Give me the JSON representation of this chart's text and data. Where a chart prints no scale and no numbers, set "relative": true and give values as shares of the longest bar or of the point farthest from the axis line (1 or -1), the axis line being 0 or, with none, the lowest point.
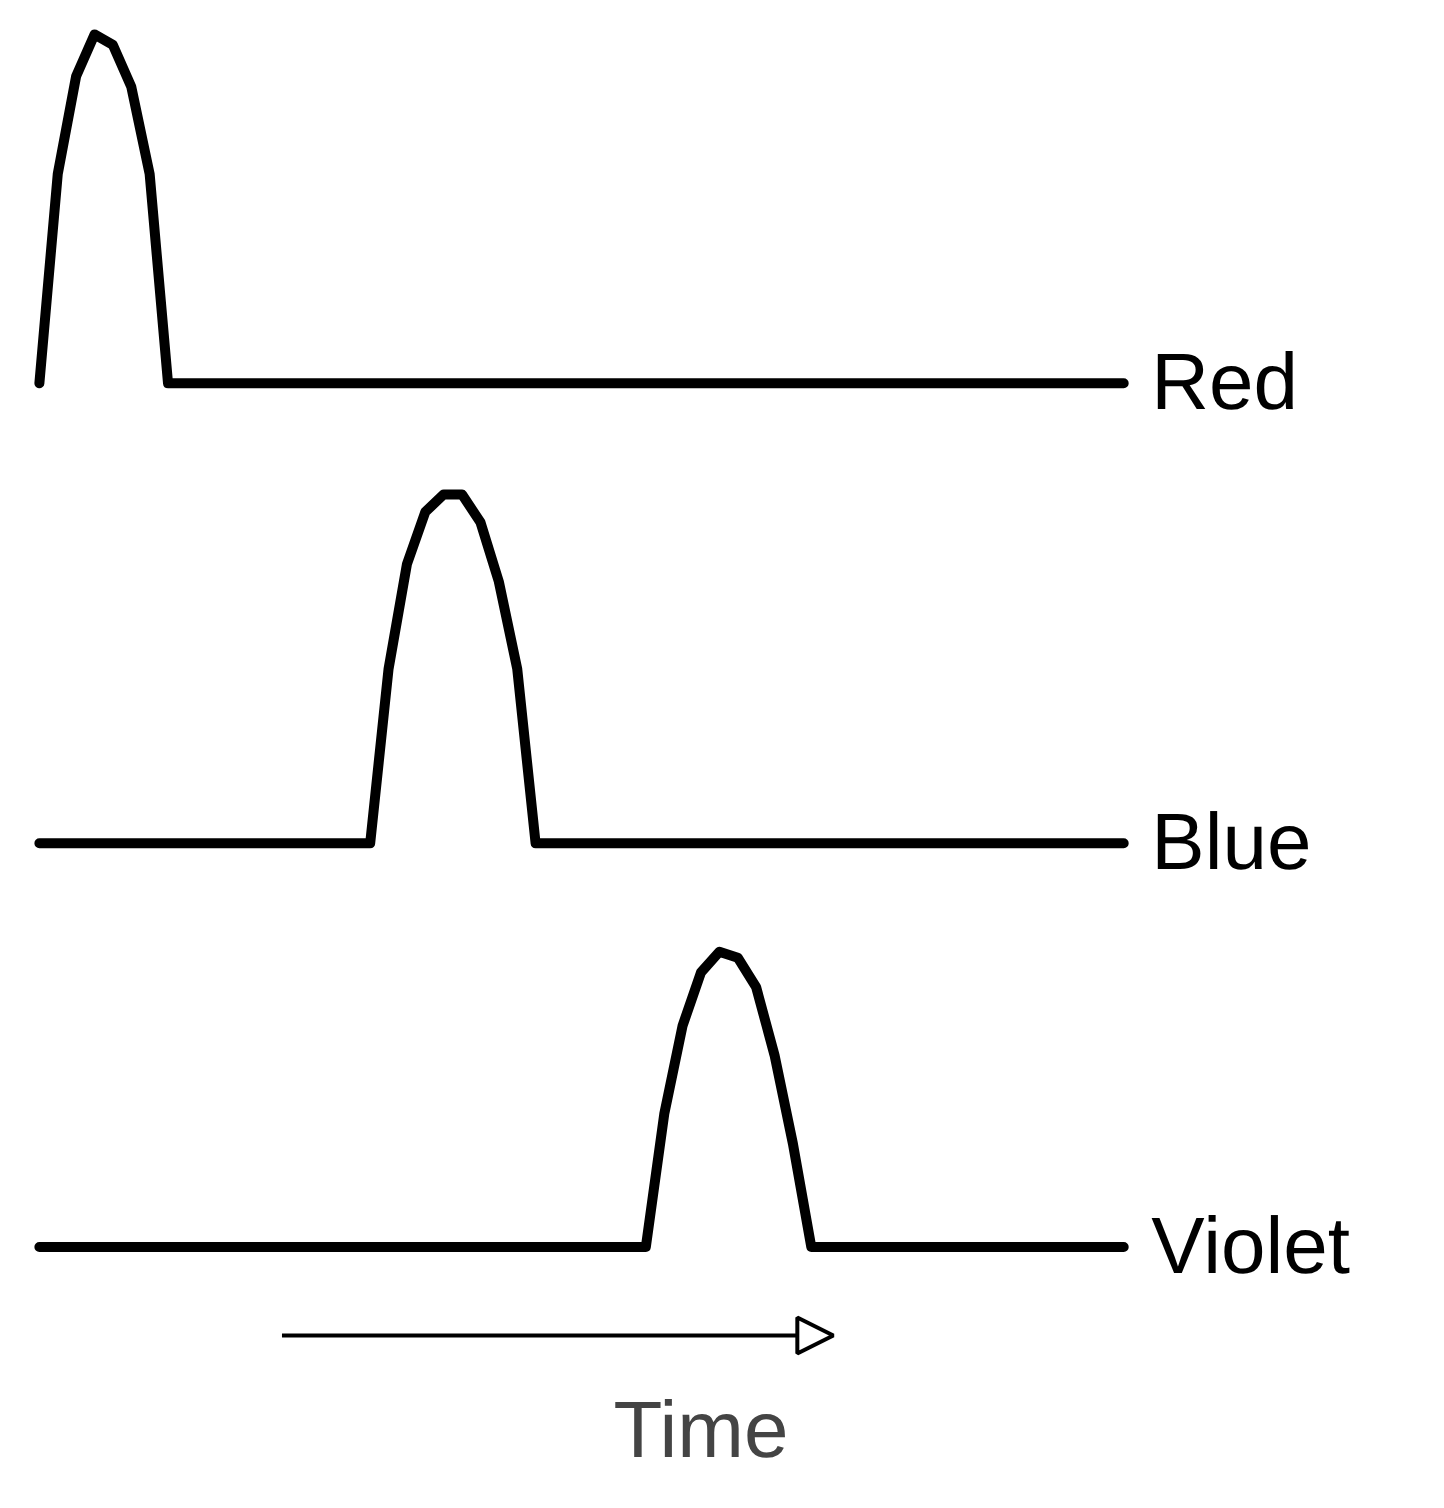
{
  "chart_data": [
    {
      "type": "line",
      "relative": true,
      "categories": [
        null,
        null,
        null,
        null,
        null,
        null,
        null,
        null,
        null,
        null,
        null,
        null,
        null,
        null,
        null,
        null,
        null,
        null,
        null,
        null,
        null,
        null,
        null,
        null,
        null,
        null,
        null,
        null,
        null,
        null,
        null,
        null,
        null,
        null,
        null,
        null,
        null,
        null,
        null,
        null,
        null,
        null,
        null,
        null,
        null,
        null,
        null,
        null,
        null,
        null,
        null,
        null,
        null,
        null,
        null,
        null,
        null,
        null,
        null,
        null
      ],
      "series": [
        {
          "name": "Red",
          "color": "#000000",
          "values": [
            0,
            0.6,
            0.88,
            1.0,
            0.97,
            0.85,
            0.6,
            0,
            0,
            0,
            0,
            0,
            0,
            0,
            0,
            0,
            0,
            0,
            0,
            0,
            0,
            0,
            0,
            0,
            0,
            0,
            0,
            0,
            0,
            0,
            0,
            0,
            0,
            0,
            0,
            0,
            0,
            0,
            0,
            0,
            0,
            0,
            0,
            0,
            0,
            0,
            0,
            0,
            0,
            0,
            0,
            0,
            0,
            0,
            0,
            0,
            0,
            0,
            0,
            0
          ]
        }
      ]
    },
    {
      "type": "line",
      "relative": true,
      "categories": [
        null,
        null,
        null,
        null,
        null,
        null,
        null,
        null,
        null,
        null,
        null,
        null,
        null,
        null,
        null,
        null,
        null,
        null,
        null,
        null,
        null,
        null,
        null,
        null,
        null,
        null,
        null,
        null,
        null,
        null,
        null,
        null,
        null,
        null,
        null,
        null,
        null,
        null,
        null,
        null,
        null,
        null,
        null,
        null,
        null,
        null,
        null,
        null,
        null,
        null,
        null,
        null,
        null,
        null,
        null,
        null,
        null,
        null,
        null,
        null
      ],
      "series": [
        {
          "name": "Blue",
          "color": "#000000",
          "values": [
            0,
            0,
            0,
            0,
            0,
            0,
            0,
            0,
            0,
            0,
            0,
            0,
            0,
            0,
            0,
            0,
            0,
            0,
            0,
            0.5,
            0.8,
            0.95,
            1.0,
            1.0,
            0.92,
            0.75,
            0.5,
            0,
            0,
            0,
            0,
            0,
            0,
            0,
            0,
            0,
            0,
            0,
            0,
            0,
            0,
            0,
            0,
            0,
            0,
            0,
            0,
            0,
            0,
            0,
            0,
            0,
            0,
            0,
            0,
            0,
            0,
            0,
            0,
            0
          ]
        }
      ]
    },
    {
      "type": "line",
      "relative": true,
      "xlabel": "Time",
      "categories": [
        null,
        null,
        null,
        null,
        null,
        null,
        null,
        null,
        null,
        null,
        null,
        null,
        null,
        null,
        null,
        null,
        null,
        null,
        null,
        null,
        null,
        null,
        null,
        null,
        null,
        null,
        null,
        null,
        null,
        null,
        null,
        null,
        null,
        null,
        null,
        null,
        null,
        null,
        null,
        null,
        null,
        null,
        null,
        null,
        null,
        null,
        null,
        null,
        null,
        null,
        null,
        null,
        null,
        null,
        null,
        null,
        null,
        null,
        null,
        null
      ],
      "series": [
        {
          "name": "Violet",
          "color": "#000000",
          "values": [
            0,
            0,
            0,
            0,
            0,
            0,
            0,
            0,
            0,
            0,
            0,
            0,
            0,
            0,
            0,
            0,
            0,
            0,
            0,
            0,
            0,
            0,
            0,
            0,
            0,
            0,
            0,
            0,
            0,
            0,
            0,
            0,
            0,
            0,
            0.45,
            0.75,
            0.93,
            1.0,
            0.98,
            0.88,
            0.65,
            0.35,
            0,
            0,
            0,
            0,
            0,
            0,
            0,
            0,
            0,
            0,
            0,
            0,
            0,
            0,
            0,
            0,
            0,
            0
          ]
        }
      ]
    }
  ]
}
